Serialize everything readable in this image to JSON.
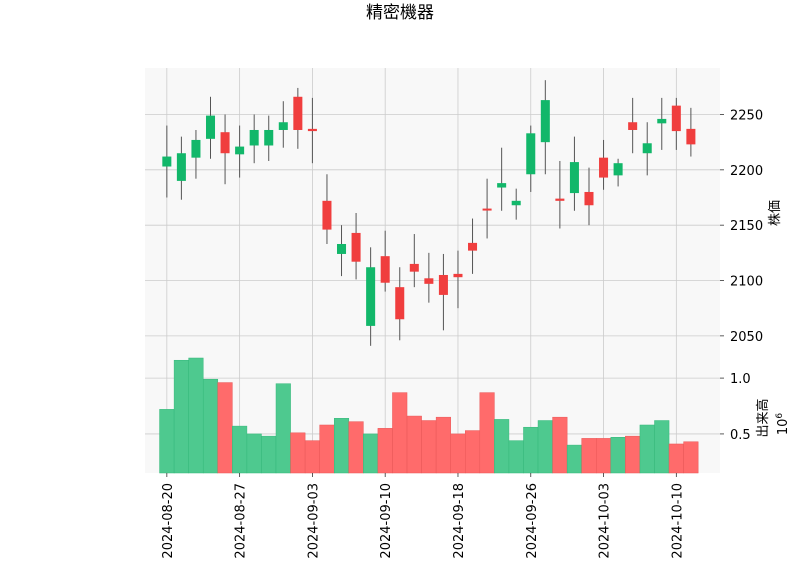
{
  "chart_data": {
    "type": "candlestick",
    "title": "精密機器",
    "price_axis": {
      "label": "株価",
      "ticks": [
        2050,
        2100,
        2150,
        2200,
        2250
      ],
      "ylim": [
        2030,
        2292
      ],
      "side": "right"
    },
    "volume_axis": {
      "label": "出来高",
      "multiplier": "10",
      "multiplier_exp": "6",
      "ticks": [
        0.5,
        1.0
      ],
      "tick_labels": [
        "0.5",
        "1.0"
      ],
      "ylim": [
        0.15,
        1.18
      ],
      "side": "right"
    },
    "x_tick_labels": [
      "2024-08-20",
      "2024-08-27",
      "2024-09-03",
      "2024-09-10",
      "2024-09-18",
      "2024-09-26",
      "2024-10-03",
      "2024-10-10"
    ],
    "x_tick_indices": [
      0,
      5,
      10,
      15,
      20,
      25,
      30,
      35
    ],
    "grid": true,
    "colors": {
      "up": "#12b76a",
      "down": "#f03e3e",
      "up_volume": "#4ec98f",
      "down_volume": "#ff6b6b",
      "grid": "#cccccc",
      "panel_bg": "#f8f8f8"
    },
    "candles": [
      {
        "open": 2203,
        "high": 2240,
        "low": 2175,
        "close": 2212
      },
      {
        "open": 2190,
        "high": 2230,
        "low": 2173,
        "close": 2215
      },
      {
        "open": 2211,
        "high": 2236,
        "low": 2192,
        "close": 2227
      },
      {
        "open": 2228,
        "high": 2266,
        "low": 2210,
        "close": 2249
      },
      {
        "open": 2234,
        "high": 2250,
        "low": 2187,
        "close": 2215
      },
      {
        "open": 2214,
        "high": 2240,
        "low": 2193,
        "close": 2221
      },
      {
        "open": 2222,
        "high": 2250,
        "low": 2206,
        "close": 2236
      },
      {
        "open": 2222,
        "high": 2249,
        "low": 2208,
        "close": 2236
      },
      {
        "open": 2236,
        "high": 2262,
        "low": 2220,
        "close": 2243
      },
      {
        "open": 2266,
        "high": 2274,
        "low": 2219,
        "close": 2236
      },
      {
        "open": 2237,
        "high": 2265,
        "low": 2206,
        "close": 2235
      },
      {
        "open": 2172,
        "high": 2196,
        "low": 2133,
        "close": 2146
      },
      {
        "open": 2124,
        "high": 2150,
        "low": 2104,
        "close": 2133
      },
      {
        "open": 2143,
        "high": 2161,
        "low": 2101,
        "close": 2117
      },
      {
        "open": 2059,
        "high": 2130,
        "low": 2041,
        "close": 2112
      },
      {
        "open": 2122,
        "high": 2145,
        "low": 2090,
        "close": 2098
      },
      {
        "open": 2094,
        "high": 2112,
        "low": 2046,
        "close": 2065
      },
      {
        "open": 2115,
        "high": 2142,
        "low": 2094,
        "close": 2108
      },
      {
        "open": 2102,
        "high": 2125,
        "low": 2080,
        "close": 2097
      },
      {
        "open": 2105,
        "high": 2124,
        "low": 2055,
        "close": 2087
      },
      {
        "open": 2106,
        "high": 2127,
        "low": 2075,
        "close": 2103
      },
      {
        "open": 2134,
        "high": 2156,
        "low": 2106,
        "close": 2127
      },
      {
        "open": 2165,
        "high": 2192,
        "low": 2138,
        "close": 2164
      },
      {
        "open": 2184,
        "high": 2220,
        "low": 2163,
        "close": 2188
      },
      {
        "open": 2168,
        "high": 2183,
        "low": 2155,
        "close": 2172
      },
      {
        "open": 2196,
        "high": 2240,
        "low": 2180,
        "close": 2233
      },
      {
        "open": 2225,
        "high": 2281,
        "low": 2196,
        "close": 2263
      },
      {
        "open": 2174,
        "high": 2208,
        "low": 2147,
        "close": 2172
      },
      {
        "open": 2179,
        "high": 2230,
        "low": 2163,
        "close": 2207
      },
      {
        "open": 2180,
        "high": 2202,
        "low": 2150,
        "close": 2168
      },
      {
        "open": 2211,
        "high": 2227,
        "low": 2182,
        "close": 2193
      },
      {
        "open": 2195,
        "high": 2210,
        "low": 2185,
        "close": 2206
      },
      {
        "open": 2243,
        "high": 2265,
        "low": 2215,
        "close": 2236
      },
      {
        "open": 2215,
        "high": 2243,
        "low": 2195,
        "close": 2224
      },
      {
        "open": 2242,
        "high": 2265,
        "low": 2218,
        "close": 2246
      },
      {
        "open": 2258,
        "high": 2265,
        "low": 2218,
        "close": 2235
      },
      {
        "open": 2237,
        "high": 2256,
        "low": 2212,
        "close": 2223
      }
    ],
    "volume": [
      0.72,
      1.16,
      1.18,
      0.99,
      0.96,
      0.57,
      0.5,
      0.48,
      0.95,
      0.51,
      0.44,
      0.58,
      0.64,
      0.61,
      0.5,
      0.55,
      0.87,
      0.66,
      0.62,
      0.65,
      0.5,
      0.53,
      0.87,
      0.63,
      0.44,
      0.56,
      0.62,
      0.65,
      0.4,
      0.46,
      0.46,
      0.47,
      0.48,
      0.58,
      0.62,
      0.41,
      0.43
    ]
  }
}
